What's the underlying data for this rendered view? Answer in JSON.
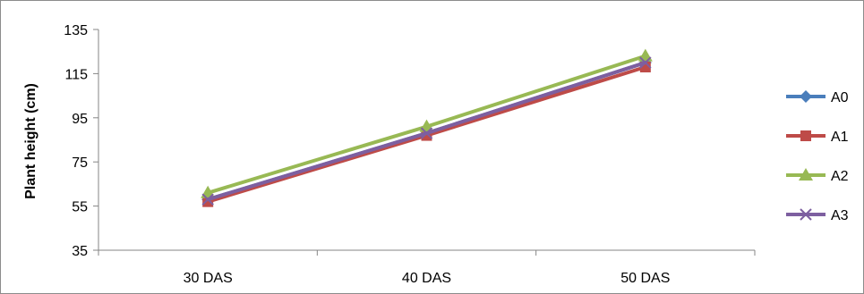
{
  "chart_data": {
    "type": "line",
    "categories": [
      "30 DAS",
      "40 DAS",
      "50 DAS"
    ],
    "ylabel": "Plant height (cm)",
    "xlabel": "",
    "title": "",
    "ylim": [
      35,
      135
    ],
    "yticks": [
      35,
      55,
      75,
      95,
      115,
      135
    ],
    "grid": false,
    "legend_position": "right",
    "series": [
      {
        "name": "A0",
        "values": [
          58,
          88,
          120
        ],
        "color": "#4a7ebb",
        "marker": "diamond"
      },
      {
        "name": "A1",
        "values": [
          57,
          87,
          118
        ],
        "color": "#be4b48",
        "marker": "square"
      },
      {
        "name": "A2",
        "values": [
          61,
          91,
          123
        ],
        "color": "#98b954",
        "marker": "triangle"
      },
      {
        "name": "A3",
        "values": [
          58,
          88,
          120
        ],
        "color": "#7d5fa0",
        "marker": "x"
      }
    ]
  }
}
